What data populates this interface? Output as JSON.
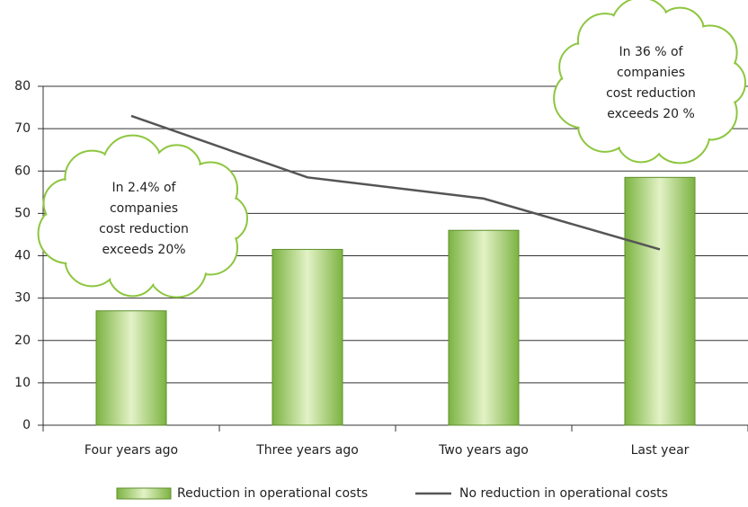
{
  "chart_data": {
    "type": "bar",
    "categories": [
      "Four years ago",
      "Three years ago",
      "Two years ago",
      "Last year"
    ],
    "series": [
      {
        "name": "Reduction in operational costs",
        "type": "bar",
        "color": "#7cb342",
        "values": [
          27,
          41.5,
          46,
          58.5
        ]
      },
      {
        "name": "No reduction in operational costs",
        "type": "line",
        "color": "#555555",
        "values": [
          73,
          58.5,
          53.5,
          41.5
        ]
      }
    ],
    "ylim": [
      0,
      80
    ],
    "yticks": [
      0,
      10,
      20,
      30,
      40,
      50,
      60,
      70,
      80
    ],
    "grid": true,
    "legend": "bottom",
    "annotations": [
      {
        "lines": [
          "In 2.4% of",
          "companies",
          "cost reduction",
          "exceeds 20%"
        ]
      },
      {
        "lines": [
          "In 36 % of",
          "companies",
          "cost reduction",
          "exceeds 20 %"
        ]
      }
    ]
  }
}
